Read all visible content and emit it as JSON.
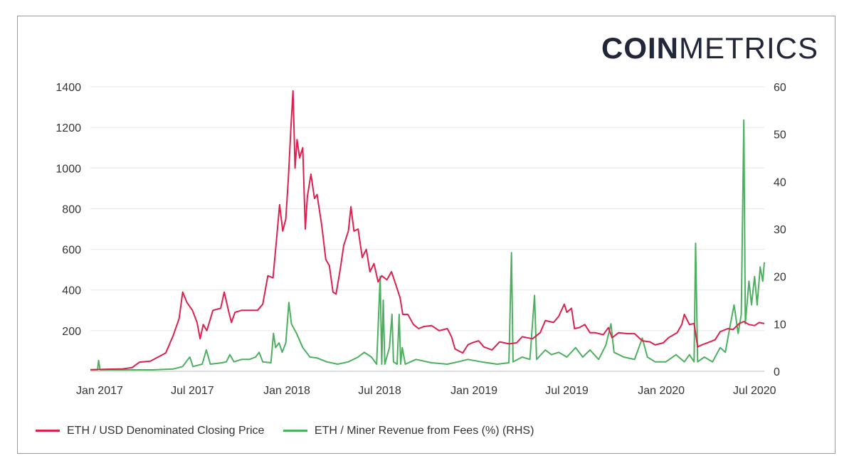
{
  "logo": {
    "bold": "COIN",
    "light": "METRICS"
  },
  "colors": {
    "price": "#dc2150",
    "fees": "#4cb05e",
    "grid": "#e6e6e6",
    "axis": "#333333"
  },
  "legend": [
    {
      "label": "ETH / USD Denominated Closing Price",
      "color": "#dc2150"
    },
    {
      "label": "ETH / Miner Revenue from Fees (%) (RHS)",
      "color": "#4cb05e"
    }
  ],
  "chart_data": {
    "type": "line",
    "x_tick_labels": [
      "Jan 2017",
      "Jul 2017",
      "Jan 2018",
      "Jul 2018",
      "Jan 2019",
      "Jul 2019",
      "Jan 2020",
      "Jul 2020"
    ],
    "y_left": {
      "ticks": [
        200,
        400,
        600,
        800,
        1000,
        1200,
        1400
      ],
      "range": [
        0,
        1400
      ]
    },
    "y_right": {
      "ticks": [
        0,
        10,
        20,
        30,
        40,
        50,
        60
      ],
      "range": [
        0,
        60
      ]
    },
    "x_range": [
      "2016-12-14",
      "2020-07-20"
    ],
    "grid": true,
    "legend_position": "bottom",
    "series": [
      {
        "name": "ETH / USD Denominated Closing Price",
        "axis": "left",
        "points": [
          [
            "2016-12-14",
            8
          ],
          [
            "2017-01-15",
            10
          ],
          [
            "2017-02-15",
            12
          ],
          [
            "2017-03-05",
            18
          ],
          [
            "2017-03-20",
            45
          ],
          [
            "2017-04-10",
            50
          ],
          [
            "2017-04-25",
            70
          ],
          [
            "2017-05-10",
            90
          ],
          [
            "2017-05-25",
            180
          ],
          [
            "2017-06-05",
            260
          ],
          [
            "2017-06-12",
            390
          ],
          [
            "2017-06-20",
            340
          ],
          [
            "2017-07-01",
            300
          ],
          [
            "2017-07-10",
            240
          ],
          [
            "2017-07-16",
            160
          ],
          [
            "2017-07-22",
            230
          ],
          [
            "2017-07-29",
            200
          ],
          [
            "2017-08-10",
            300
          ],
          [
            "2017-08-25",
            310
          ],
          [
            "2017-09-01",
            390
          ],
          [
            "2017-09-10",
            290
          ],
          [
            "2017-09-15",
            240
          ],
          [
            "2017-09-22",
            290
          ],
          [
            "2017-10-05",
            300
          ],
          [
            "2017-10-20",
            300
          ],
          [
            "2017-11-05",
            300
          ],
          [
            "2017-11-15",
            330
          ],
          [
            "2017-11-25",
            470
          ],
          [
            "2017-12-05",
            460
          ],
          [
            "2017-12-12",
            650
          ],
          [
            "2017-12-18",
            820
          ],
          [
            "2017-12-24",
            690
          ],
          [
            "2017-12-30",
            750
          ],
          [
            "2018-01-04",
            950
          ],
          [
            "2018-01-09",
            1200
          ],
          [
            "2018-01-13",
            1380
          ],
          [
            "2018-01-17",
            1000
          ],
          [
            "2018-01-21",
            1140
          ],
          [
            "2018-01-26",
            1050
          ],
          [
            "2018-02-01",
            1100
          ],
          [
            "2018-02-06",
            700
          ],
          [
            "2018-02-10",
            860
          ],
          [
            "2018-02-17",
            970
          ],
          [
            "2018-02-24",
            850
          ],
          [
            "2018-03-01",
            870
          ],
          [
            "2018-03-10",
            720
          ],
          [
            "2018-03-18",
            550
          ],
          [
            "2018-03-25",
            520
          ],
          [
            "2018-04-01",
            390
          ],
          [
            "2018-04-07",
            380
          ],
          [
            "2018-04-15",
            500
          ],
          [
            "2018-04-22",
            620
          ],
          [
            "2018-05-01",
            690
          ],
          [
            "2018-05-06",
            810
          ],
          [
            "2018-05-12",
            690
          ],
          [
            "2018-05-20",
            700
          ],
          [
            "2018-05-28",
            560
          ],
          [
            "2018-06-05",
            600
          ],
          [
            "2018-06-12",
            490
          ],
          [
            "2018-06-20",
            530
          ],
          [
            "2018-06-28",
            440
          ],
          [
            "2018-07-05",
            470
          ],
          [
            "2018-07-15",
            450
          ],
          [
            "2018-07-24",
            490
          ],
          [
            "2018-08-01",
            430
          ],
          [
            "2018-08-10",
            360
          ],
          [
            "2018-08-15",
            280
          ],
          [
            "2018-08-25",
            280
          ],
          [
            "2018-09-05",
            230
          ],
          [
            "2018-09-15",
            210
          ],
          [
            "2018-09-25",
            220
          ],
          [
            "2018-10-10",
            225
          ],
          [
            "2018-10-25",
            200
          ],
          [
            "2018-11-10",
            210
          ],
          [
            "2018-11-18",
            170
          ],
          [
            "2018-11-25",
            110
          ],
          [
            "2018-12-10",
            90
          ],
          [
            "2018-12-20",
            130
          ],
          [
            "2018-12-28",
            140
          ],
          [
            "2019-01-10",
            150
          ],
          [
            "2019-01-20",
            120
          ],
          [
            "2019-02-05",
            105
          ],
          [
            "2019-02-20",
            145
          ],
          [
            "2019-03-10",
            135
          ],
          [
            "2019-03-25",
            140
          ],
          [
            "2019-04-05",
            170
          ],
          [
            "2019-04-25",
            160
          ],
          [
            "2019-05-10",
            190
          ],
          [
            "2019-05-20",
            250
          ],
          [
            "2019-06-05",
            240
          ],
          [
            "2019-06-15",
            270
          ],
          [
            "2019-06-26",
            330
          ],
          [
            "2019-07-01",
            290
          ],
          [
            "2019-07-10",
            310
          ],
          [
            "2019-07-16",
            210
          ],
          [
            "2019-07-25",
            215
          ],
          [
            "2019-08-05",
            230
          ],
          [
            "2019-08-15",
            190
          ],
          [
            "2019-08-25",
            190
          ],
          [
            "2019-09-10",
            180
          ],
          [
            "2019-09-20",
            215
          ],
          [
            "2019-09-27",
            165
          ],
          [
            "2019-10-10",
            190
          ],
          [
            "2019-10-27",
            185
          ],
          [
            "2019-11-10",
            185
          ],
          [
            "2019-11-25",
            150
          ],
          [
            "2019-12-10",
            145
          ],
          [
            "2019-12-20",
            130
          ],
          [
            "2020-01-05",
            140
          ],
          [
            "2020-01-15",
            165
          ],
          [
            "2020-02-01",
            190
          ],
          [
            "2020-02-10",
            230
          ],
          [
            "2020-02-15",
            280
          ],
          [
            "2020-02-25",
            230
          ],
          [
            "2020-03-05",
            235
          ],
          [
            "2020-03-12",
            120
          ],
          [
            "2020-03-20",
            130
          ],
          [
            "2020-04-05",
            145
          ],
          [
            "2020-04-15",
            155
          ],
          [
            "2020-04-25",
            195
          ],
          [
            "2020-05-10",
            210
          ],
          [
            "2020-05-20",
            205
          ],
          [
            "2020-06-01",
            235
          ],
          [
            "2020-06-10",
            245
          ],
          [
            "2020-06-20",
            230
          ],
          [
            "2020-07-01",
            225
          ],
          [
            "2020-07-10",
            240
          ],
          [
            "2020-07-20",
            235
          ]
        ]
      },
      {
        "name": "ETH / Miner Revenue from Fees (%) (RHS)",
        "axis": "right",
        "points": [
          [
            "2016-12-14",
            0.3
          ],
          [
            "2016-12-28",
            0.3
          ],
          [
            "2016-12-30",
            2.3
          ],
          [
            "2017-01-02",
            0.3
          ],
          [
            "2017-02-15",
            0.3
          ],
          [
            "2017-04-15",
            0.3
          ],
          [
            "2017-05-25",
            0.5
          ],
          [
            "2017-06-12",
            1.0
          ],
          [
            "2017-06-20",
            2.2
          ],
          [
            "2017-06-26",
            3.0
          ],
          [
            "2017-07-02",
            1.0
          ],
          [
            "2017-07-20",
            1.5
          ],
          [
            "2017-07-28",
            4.5
          ],
          [
            "2017-08-05",
            1.5
          ],
          [
            "2017-08-28",
            1.8
          ],
          [
            "2017-09-05",
            2.0
          ],
          [
            "2017-09-12",
            3.5
          ],
          [
            "2017-09-20",
            2.0
          ],
          [
            "2017-10-05",
            2.5
          ],
          [
            "2017-10-20",
            2.5
          ],
          [
            "2017-11-01",
            3.0
          ],
          [
            "2017-11-08",
            4.0
          ],
          [
            "2017-11-15",
            2.0
          ],
          [
            "2017-12-01",
            1.8
          ],
          [
            "2017-12-06",
            8.0
          ],
          [
            "2017-12-10",
            5.0
          ],
          [
            "2017-12-17",
            6.0
          ],
          [
            "2017-12-23",
            4.0
          ],
          [
            "2017-12-30",
            6.0
          ],
          [
            "2018-01-05",
            14.5
          ],
          [
            "2018-01-10",
            10.0
          ],
          [
            "2018-01-20",
            8.0
          ],
          [
            "2018-02-01",
            5.0
          ],
          [
            "2018-02-15",
            3.0
          ],
          [
            "2018-03-01",
            2.8
          ],
          [
            "2018-03-20",
            2.0
          ],
          [
            "2018-04-10",
            1.5
          ],
          [
            "2018-05-01",
            2.0
          ],
          [
            "2018-05-20",
            3.0
          ],
          [
            "2018-06-01",
            4.0
          ],
          [
            "2018-06-15",
            3.0
          ],
          [
            "2018-06-25",
            1.5
          ],
          [
            "2018-07-02",
            20.0
          ],
          [
            "2018-07-05",
            1.5
          ],
          [
            "2018-07-08",
            15.0
          ],
          [
            "2018-07-11",
            1.5
          ],
          [
            "2018-07-20",
            5.0
          ],
          [
            "2018-07-25",
            12.0
          ],
          [
            "2018-07-28",
            2.0
          ],
          [
            "2018-08-04",
            1.5
          ],
          [
            "2018-08-08",
            12.0
          ],
          [
            "2018-08-11",
            1.5
          ],
          [
            "2018-08-14",
            5.0
          ],
          [
            "2018-08-20",
            1.5
          ],
          [
            "2018-09-10",
            2.5
          ],
          [
            "2018-10-10",
            1.8
          ],
          [
            "2018-11-10",
            1.5
          ],
          [
            "2018-12-01",
            2.0
          ],
          [
            "2018-12-20",
            2.5
          ],
          [
            "2019-01-15",
            2.0
          ],
          [
            "2019-02-15",
            1.5
          ],
          [
            "2019-03-10",
            1.8
          ],
          [
            "2019-03-15",
            25.0
          ],
          [
            "2019-03-18",
            2.0
          ],
          [
            "2019-04-05",
            3.0
          ],
          [
            "2019-04-20",
            2.5
          ],
          [
            "2019-04-29",
            16.0
          ],
          [
            "2019-05-03",
            2.5
          ],
          [
            "2019-05-20",
            4.5
          ],
          [
            "2019-06-01",
            3.5
          ],
          [
            "2019-06-15",
            4.0
          ],
          [
            "2019-07-01",
            3.0
          ],
          [
            "2019-07-18",
            5.0
          ],
          [
            "2019-08-01",
            3.0
          ],
          [
            "2019-08-15",
            4.5
          ],
          [
            "2019-09-01",
            2.5
          ],
          [
            "2019-09-15",
            5.5
          ],
          [
            "2019-09-25",
            10.0
          ],
          [
            "2019-10-01",
            4.0
          ],
          [
            "2019-10-20",
            3.0
          ],
          [
            "2019-11-10",
            2.5
          ],
          [
            "2019-11-25",
            7.0
          ],
          [
            "2019-12-05",
            3.0
          ],
          [
            "2019-12-20",
            2.0
          ],
          [
            "2020-01-10",
            2.0
          ],
          [
            "2020-01-30",
            3.5
          ],
          [
            "2020-02-15",
            2.0
          ],
          [
            "2020-02-25",
            3.5
          ],
          [
            "2020-03-05",
            2.0
          ],
          [
            "2020-03-08",
            27.0
          ],
          [
            "2020-03-12",
            2.0
          ],
          [
            "2020-03-25",
            3.0
          ],
          [
            "2020-04-10",
            2.0
          ],
          [
            "2020-04-25",
            5.0
          ],
          [
            "2020-05-05",
            4.0
          ],
          [
            "2020-05-15",
            10.0
          ],
          [
            "2020-05-22",
            14.0
          ],
          [
            "2020-05-30",
            8.0
          ],
          [
            "2020-06-05",
            12.0
          ],
          [
            "2020-06-10",
            53.0
          ],
          [
            "2020-06-13",
            10.0
          ],
          [
            "2020-06-20",
            19.0
          ],
          [
            "2020-06-25",
            14.0
          ],
          [
            "2020-07-01",
            20.0
          ],
          [
            "2020-07-06",
            14.0
          ],
          [
            "2020-07-12",
            22.0
          ],
          [
            "2020-07-17",
            19.0
          ],
          [
            "2020-07-20",
            23.0
          ]
        ]
      }
    ]
  }
}
